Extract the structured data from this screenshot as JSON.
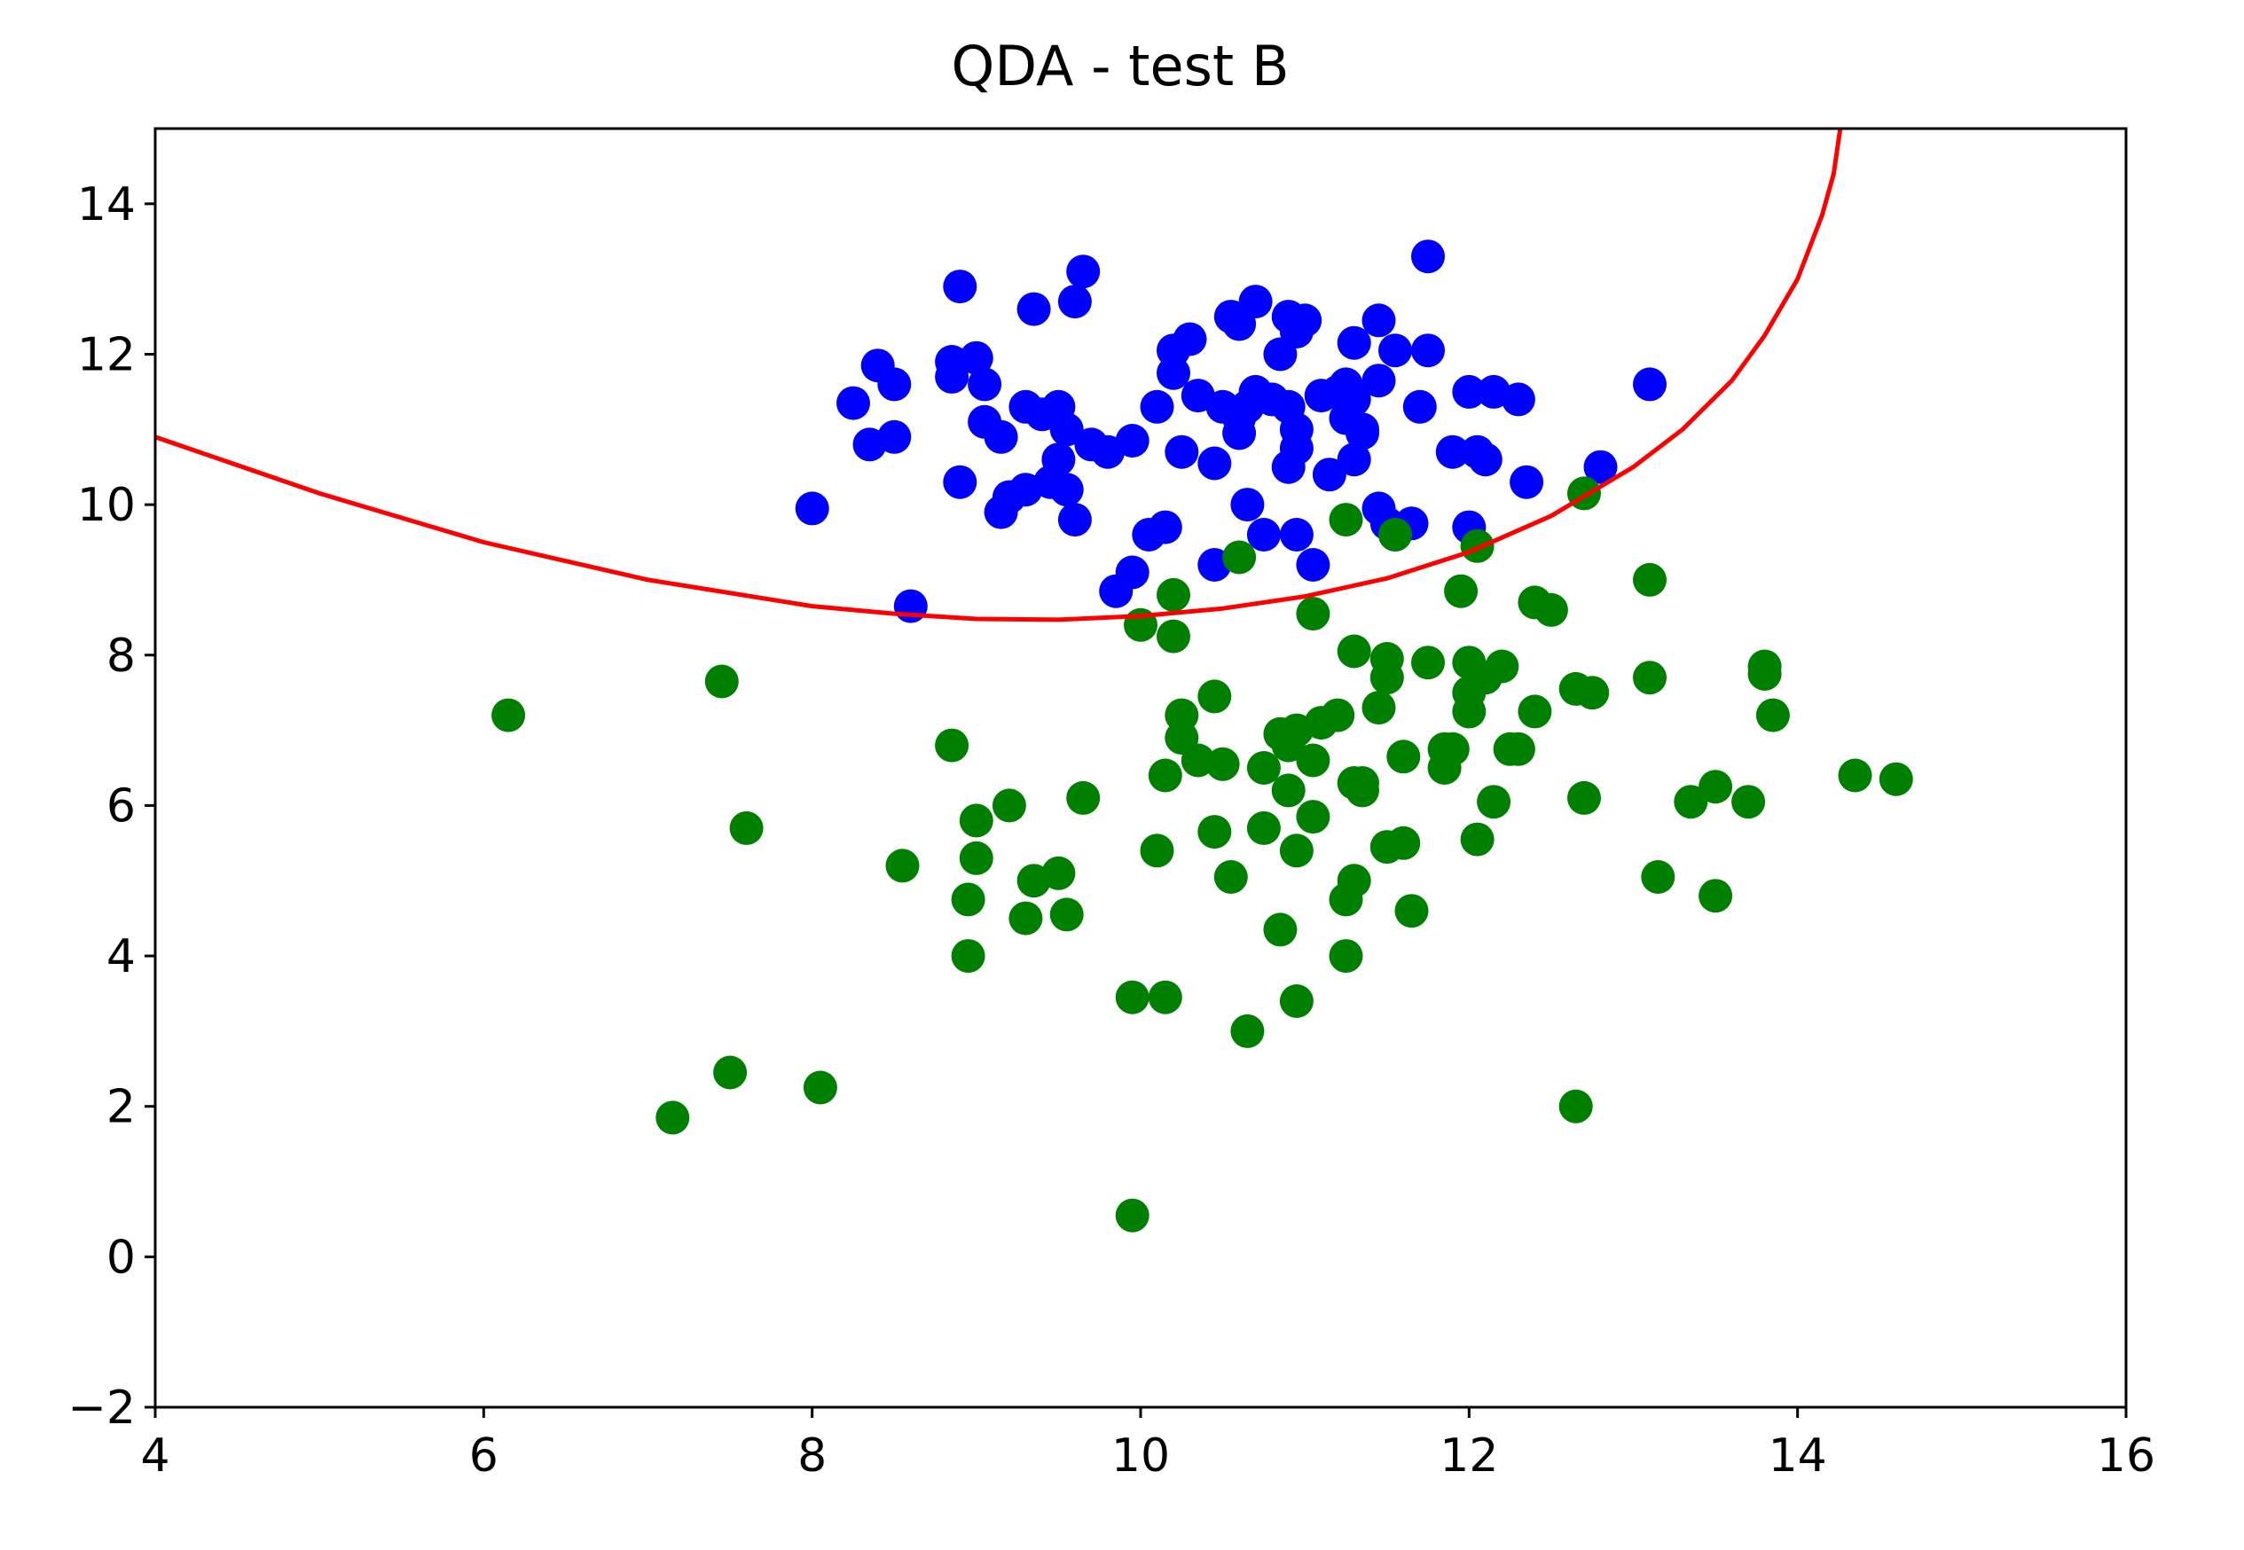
{
  "chart_data": {
    "type": "scatter",
    "title": "QDA - test B",
    "xlabel": "",
    "ylabel": "",
    "xlim": [
      4,
      16
    ],
    "ylim": [
      -2,
      15
    ],
    "xticks": [
      4,
      6,
      8,
      10,
      12,
      14,
      16
    ],
    "yticks": [
      -2,
      0,
      2,
      4,
      6,
      8,
      10,
      12,
      14
    ],
    "xtick_labels": [
      "4",
      "6",
      "8",
      "10",
      "12",
      "14",
      "16"
    ],
    "ytick_labels": [
      "−2",
      "0",
      "2",
      "4",
      "6",
      "8",
      "10",
      "12",
      "14"
    ],
    "grid": false,
    "legend": "none",
    "colors": {
      "class_1": "#0000ff",
      "class_2": "#008000",
      "boundary": "#ff0000"
    },
    "series": [
      {
        "color": "#0000ff",
        "points": [
          [
            8.0,
            9.95
          ],
          [
            8.25,
            11.35
          ],
          [
            8.35,
            10.8
          ],
          [
            8.4,
            11.85
          ],
          [
            8.5,
            11.6
          ],
          [
            8.5,
            10.9
          ],
          [
            8.6,
            8.65
          ],
          [
            8.85,
            11.9
          ],
          [
            8.85,
            11.7
          ],
          [
            8.9,
            12.9
          ],
          [
            8.9,
            10.3
          ],
          [
            9.0,
            11.95
          ],
          [
            9.05,
            11.6
          ],
          [
            9.05,
            11.1
          ],
          [
            9.15,
            10.9
          ],
          [
            9.15,
            9.9
          ],
          [
            9.2,
            10.1
          ],
          [
            9.3,
            11.3
          ],
          [
            9.3,
            10.2
          ],
          [
            9.35,
            12.6
          ],
          [
            9.4,
            11.2
          ],
          [
            9.45,
            10.3
          ],
          [
            9.5,
            11.3
          ],
          [
            9.5,
            10.6
          ],
          [
            9.55,
            11.0
          ],
          [
            9.55,
            10.2
          ],
          [
            9.6,
            12.7
          ],
          [
            9.6,
            9.8
          ],
          [
            9.65,
            13.1
          ],
          [
            9.7,
            10.8
          ],
          [
            9.8,
            10.7
          ],
          [
            9.85,
            8.85
          ],
          [
            9.95,
            10.85
          ],
          [
            9.95,
            9.1
          ],
          [
            10.05,
            9.6
          ],
          [
            10.1,
            11.3
          ],
          [
            10.15,
            9.7
          ],
          [
            10.2,
            12.05
          ],
          [
            10.2,
            11.75
          ],
          [
            10.25,
            10.7
          ],
          [
            10.3,
            12.2
          ],
          [
            10.35,
            11.45
          ],
          [
            10.45,
            10.55
          ],
          [
            10.45,
            9.2
          ],
          [
            10.5,
            11.3
          ],
          [
            10.55,
            12.5
          ],
          [
            10.6,
            12.4
          ],
          [
            10.6,
            11.15
          ],
          [
            10.6,
            10.95
          ],
          [
            10.65,
            11.3
          ],
          [
            10.65,
            10.0
          ],
          [
            10.7,
            12.7
          ],
          [
            10.7,
            11.5
          ],
          [
            10.75,
            9.6
          ],
          [
            10.8,
            11.4
          ],
          [
            10.85,
            12.0
          ],
          [
            10.9,
            12.5
          ],
          [
            10.9,
            11.3
          ],
          [
            10.9,
            10.5
          ],
          [
            10.95,
            12.3
          ],
          [
            10.95,
            11.0
          ],
          [
            10.95,
            10.75
          ],
          [
            10.95,
            9.6
          ],
          [
            11.0,
            12.45
          ],
          [
            11.05,
            9.2
          ],
          [
            11.1,
            11.45
          ],
          [
            11.15,
            10.4
          ],
          [
            11.2,
            11.5
          ],
          [
            11.25,
            11.6
          ],
          [
            11.25,
            11.15
          ],
          [
            11.3,
            12.15
          ],
          [
            11.3,
            10.6
          ],
          [
            11.3,
            11.4
          ],
          [
            11.35,
            11.0
          ],
          [
            11.35,
            10.95
          ],
          [
            11.45,
            12.45
          ],
          [
            11.45,
            9.95
          ],
          [
            11.45,
            11.65
          ],
          [
            11.5,
            9.75
          ],
          [
            11.55,
            12.05
          ],
          [
            11.55,
            9.6
          ],
          [
            11.65,
            9.75
          ],
          [
            11.7,
            11.3
          ],
          [
            11.75,
            12.05
          ],
          [
            11.75,
            13.3
          ],
          [
            11.9,
            10.7
          ],
          [
            12.0,
            11.5
          ],
          [
            12.0,
            9.7
          ],
          [
            12.05,
            10.7
          ],
          [
            12.1,
            10.6
          ],
          [
            12.15,
            11.5
          ],
          [
            12.3,
            11.4
          ],
          [
            12.35,
            10.3
          ],
          [
            12.8,
            10.5
          ],
          [
            13.1,
            11.6
          ]
        ]
      },
      {
        "color": "#008000",
        "points": [
          [
            6.15,
            7.2
          ],
          [
            7.15,
            1.85
          ],
          [
            7.45,
            7.65
          ],
          [
            7.5,
            2.45
          ],
          [
            7.6,
            5.7
          ],
          [
            8.05,
            2.25
          ],
          [
            8.55,
            5.2
          ],
          [
            8.85,
            6.8
          ],
          [
            8.95,
            4.75
          ],
          [
            8.95,
            4.0
          ],
          [
            9.0,
            5.8
          ],
          [
            9.0,
            5.3
          ],
          [
            9.2,
            6.0
          ],
          [
            9.3,
            4.5
          ],
          [
            9.35,
            5.0
          ],
          [
            9.5,
            5.1
          ],
          [
            9.55,
            4.55
          ],
          [
            9.65,
            6.1
          ],
          [
            9.95,
            0.55
          ],
          [
            9.95,
            3.45
          ],
          [
            10.0,
            8.4
          ],
          [
            10.1,
            5.4
          ],
          [
            10.15,
            3.45
          ],
          [
            10.15,
            6.4
          ],
          [
            10.2,
            8.25
          ],
          [
            10.2,
            8.8
          ],
          [
            10.25,
            7.2
          ],
          [
            10.25,
            6.9
          ],
          [
            10.35,
            6.6
          ],
          [
            10.45,
            5.65
          ],
          [
            10.45,
            7.45
          ],
          [
            10.5,
            6.55
          ],
          [
            10.55,
            5.05
          ],
          [
            10.6,
            9.3
          ],
          [
            10.65,
            3.0
          ],
          [
            10.75,
            6.5
          ],
          [
            10.75,
            5.7
          ],
          [
            10.85,
            4.35
          ],
          [
            10.85,
            6.95
          ],
          [
            10.9,
            6.2
          ],
          [
            10.9,
            6.8
          ],
          [
            10.95,
            7.0
          ],
          [
            10.95,
            5.4
          ],
          [
            10.95,
            3.4
          ],
          [
            11.05,
            6.6
          ],
          [
            11.05,
            5.85
          ],
          [
            11.05,
            8.55
          ],
          [
            11.1,
            7.1
          ],
          [
            11.2,
            7.2
          ],
          [
            11.25,
            4.75
          ],
          [
            11.25,
            4.0
          ],
          [
            11.25,
            9.8
          ],
          [
            11.3,
            8.05
          ],
          [
            11.3,
            6.3
          ],
          [
            11.3,
            5.0
          ],
          [
            11.35,
            6.2
          ],
          [
            11.35,
            6.3
          ],
          [
            11.45,
            7.3
          ],
          [
            11.5,
            7.95
          ],
          [
            11.5,
            7.7
          ],
          [
            11.5,
            5.45
          ],
          [
            11.55,
            9.6
          ],
          [
            11.6,
            5.5
          ],
          [
            11.6,
            6.65
          ],
          [
            11.65,
            4.6
          ],
          [
            11.75,
            7.9
          ],
          [
            11.85,
            6.75
          ],
          [
            11.85,
            6.5
          ],
          [
            11.9,
            6.75
          ],
          [
            11.95,
            8.85
          ],
          [
            12.0,
            7.9
          ],
          [
            12.0,
            7.5
          ],
          [
            12.0,
            7.25
          ],
          [
            12.05,
            5.55
          ],
          [
            12.05,
            9.45
          ],
          [
            12.1,
            7.7
          ],
          [
            12.15,
            6.05
          ],
          [
            12.2,
            7.85
          ],
          [
            12.25,
            6.75
          ],
          [
            12.3,
            6.75
          ],
          [
            12.4,
            8.7
          ],
          [
            12.4,
            7.25
          ],
          [
            12.5,
            8.6
          ],
          [
            12.65,
            7.55
          ],
          [
            12.65,
            2.0
          ],
          [
            12.7,
            6.1
          ],
          [
            12.7,
            10.15
          ],
          [
            12.75,
            7.5
          ],
          [
            13.1,
            9.0
          ],
          [
            13.1,
            7.7
          ],
          [
            13.15,
            5.05
          ],
          [
            13.35,
            6.05
          ],
          [
            13.5,
            6.25
          ],
          [
            13.5,
            4.8
          ],
          [
            13.7,
            6.05
          ],
          [
            13.8,
            7.75
          ],
          [
            13.8,
            7.85
          ],
          [
            13.85,
            7.2
          ],
          [
            14.35,
            6.4
          ],
          [
            14.6,
            6.35
          ]
        ]
      }
    ],
    "boundary": {
      "color": "#ff0000",
      "points": [
        [
          4.0,
          10.9
        ],
        [
          5.0,
          10.15
        ],
        [
          6.0,
          9.5
        ],
        [
          7.0,
          9.0
        ],
        [
          8.0,
          8.65
        ],
        [
          8.5,
          8.55
        ],
        [
          9.0,
          8.48
        ],
        [
          9.5,
          8.47
        ],
        [
          10.0,
          8.52
        ],
        [
          10.5,
          8.62
        ],
        [
          11.0,
          8.78
        ],
        [
          11.5,
          9.02
        ],
        [
          12.0,
          9.37
        ],
        [
          12.5,
          9.85
        ],
        [
          13.0,
          10.5
        ],
        [
          13.3,
          11.0
        ],
        [
          13.6,
          11.65
        ],
        [
          13.8,
          12.25
        ],
        [
          14.0,
          13.0
        ],
        [
          14.15,
          13.85
        ],
        [
          14.22,
          14.4
        ],
        [
          14.26,
          15.0
        ]
      ]
    }
  }
}
